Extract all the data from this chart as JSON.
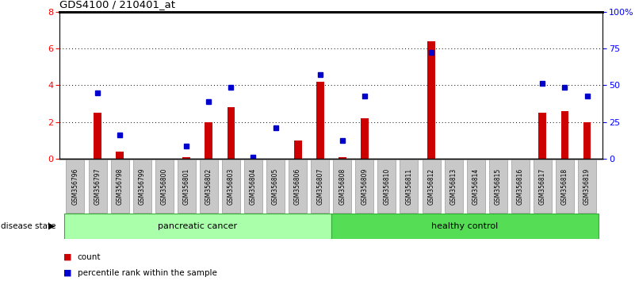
{
  "title": "GDS4100 / 210401_at",
  "samples": [
    "GSM356796",
    "GSM356797",
    "GSM356798",
    "GSM356799",
    "GSM356800",
    "GSM356801",
    "GSM356802",
    "GSM356803",
    "GSM356804",
    "GSM356805",
    "GSM356806",
    "GSM356807",
    "GSM356808",
    "GSM356809",
    "GSM356810",
    "GSM356811",
    "GSM356812",
    "GSM356813",
    "GSM356814",
    "GSM356815",
    "GSM356816",
    "GSM356817",
    "GSM356818",
    "GSM356819"
  ],
  "counts": [
    0,
    2.5,
    0.4,
    0,
    0,
    0.1,
    2.0,
    2.8,
    0,
    0,
    1.0,
    4.2,
    0.1,
    2.2,
    0,
    0,
    6.4,
    0,
    0,
    0,
    0,
    2.5,
    2.6,
    2.0
  ],
  "percentiles": [
    null,
    3.6,
    1.3,
    null,
    null,
    0.7,
    3.1,
    3.9,
    0.1,
    1.7,
    null,
    4.6,
    1.0,
    3.4,
    null,
    null,
    5.8,
    null,
    null,
    null,
    null,
    4.1,
    3.9,
    3.4
  ],
  "ylim": [
    0,
    8
  ],
  "yticks_left": [
    0,
    2,
    4,
    6,
    8
  ],
  "yticks_right_vals": [
    0,
    25,
    50,
    75,
    100
  ],
  "yticks_right_labels": [
    "0",
    "25",
    "50",
    "75",
    "100%"
  ],
  "bar_color": "#CC0000",
  "marker_color": "#0000CC",
  "tick_bg_color": "#C8C8C8",
  "group1_label": "pancreatic cancer",
  "group1_color": "#AAFFAA",
  "group2_label": "healthy control",
  "group2_color": "#55DD55",
  "group1_count": 12,
  "group2_count": 12,
  "legend_count_label": "count",
  "legend_pct_label": "percentile rank within the sample",
  "disease_state_label": "disease state"
}
